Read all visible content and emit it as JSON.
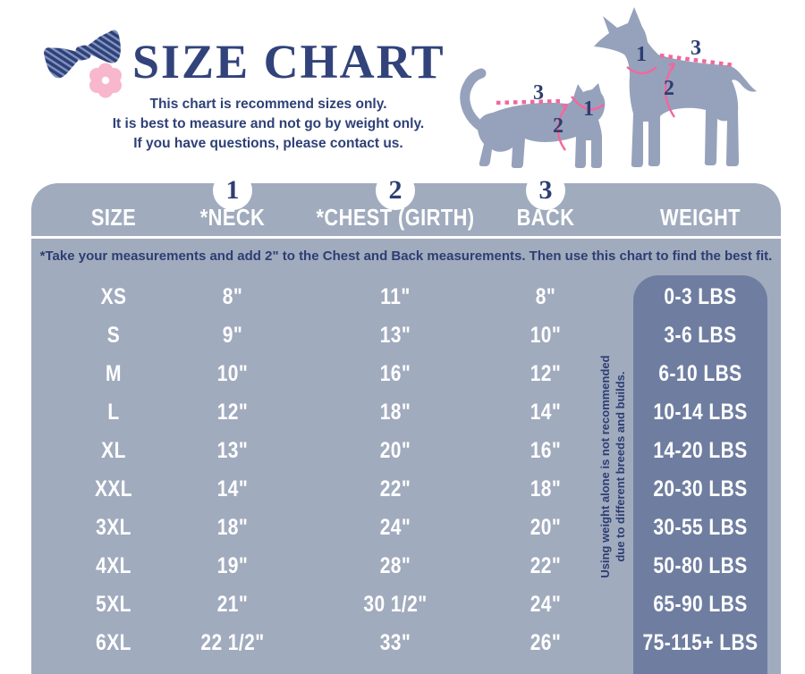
{
  "header": {
    "title": "SIZE CHART",
    "subtitle_lines": [
      "This chart is recommend sizes only.",
      "It is best to measure and not go by weight only.",
      "If you have questions, please contact us."
    ],
    "logo_icons": [
      "bow-tie-icon",
      "flower-icon"
    ]
  },
  "diagram": {
    "animals": [
      "cat",
      "dog"
    ],
    "markers": {
      "neck": "1",
      "chest": "2",
      "back": "3"
    }
  },
  "table": {
    "columns": [
      "SIZE",
      "*NECK",
      "*CHEST (GIRTH)",
      "BACK",
      "WEIGHT"
    ],
    "note": "*Take your measurements and add 2\" to the Chest and Back measurements. Then use this chart to find the best fit.",
    "side_note_lines": [
      "Using weight alone is not recommended",
      "due to different breeds and builds."
    ],
    "rows": [
      {
        "size": "XS",
        "neck": "8\"",
        "chest": "11\"",
        "back": "8\"",
        "weight": "0-3 LBS"
      },
      {
        "size": "S",
        "neck": "9\"",
        "chest": "13\"",
        "back": "10\"",
        "weight": "3-6 LBS"
      },
      {
        "size": "M",
        "neck": "10\"",
        "chest": "16\"",
        "back": "12\"",
        "weight": "6-10 LBS"
      },
      {
        "size": "L",
        "neck": "12\"",
        "chest": "18\"",
        "back": "14\"",
        "weight": "10-14 LBS"
      },
      {
        "size": "XL",
        "neck": "13\"",
        "chest": "20\"",
        "back": "16\"",
        "weight": "14-20 LBS"
      },
      {
        "size": "XXL",
        "neck": "14\"",
        "chest": "22\"",
        "back": "18\"",
        "weight": "20-30 LBS"
      },
      {
        "size": "3XL",
        "neck": "18\"",
        "chest": "24\"",
        "back": "20\"",
        "weight": "30-55 LBS"
      },
      {
        "size": "4XL",
        "neck": "19\"",
        "chest": "28\"",
        "back": "22\"",
        "weight": "50-80 LBS"
      },
      {
        "size": "5XL",
        "neck": "21\"",
        "chest": "30 1/2\"",
        "back": "24\"",
        "weight": "65-90 LBS"
      },
      {
        "size": "6XL",
        "neck": "22 1/2\"",
        "chest": "33\"",
        "back": "26\"",
        "weight": "75-115+ LBS"
      }
    ]
  },
  "chart_data": {
    "type": "table",
    "title": "SIZE CHART",
    "columns": [
      "SIZE",
      "*NECK",
      "*CHEST (GIRTH)",
      "BACK",
      "WEIGHT"
    ],
    "rows": [
      [
        "XS",
        "8\"",
        "11\"",
        "8\"",
        "0-3 LBS"
      ],
      [
        "S",
        "9\"",
        "13\"",
        "10\"",
        "3-6 LBS"
      ],
      [
        "M",
        "10\"",
        "16\"",
        "12\"",
        "6-10 LBS"
      ],
      [
        "L",
        "12\"",
        "18\"",
        "14\"",
        "10-14 LBS"
      ],
      [
        "XL",
        "13\"",
        "20\"",
        "16\"",
        "14-20 LBS"
      ],
      [
        "XXL",
        "14\"",
        "22\"",
        "18\"",
        "20-30 LBS"
      ],
      [
        "3XL",
        "18\"",
        "24\"",
        "20\"",
        "30-55 LBS"
      ],
      [
        "4XL",
        "19\"",
        "28\"",
        "22\"",
        "50-80 LBS"
      ],
      [
        "5XL",
        "21\"",
        "30 1/2\"",
        "24\"",
        "65-90 LBS"
      ],
      [
        "6XL",
        "22 1/2\"",
        "33\"",
        "26\"",
        "75-115+ LBS"
      ]
    ]
  },
  "colors": {
    "navy_text": "#2c3e72",
    "title_navy": "#32437b",
    "table_background": "#a1abbe",
    "weight_box": "#6f7ea0",
    "pink_accent": "#f2679d",
    "flower_pink": "#f8b7cd",
    "bow_navy": "#2f4178",
    "silhouette": "#96a2bb",
    "white": "#ffffff"
  }
}
